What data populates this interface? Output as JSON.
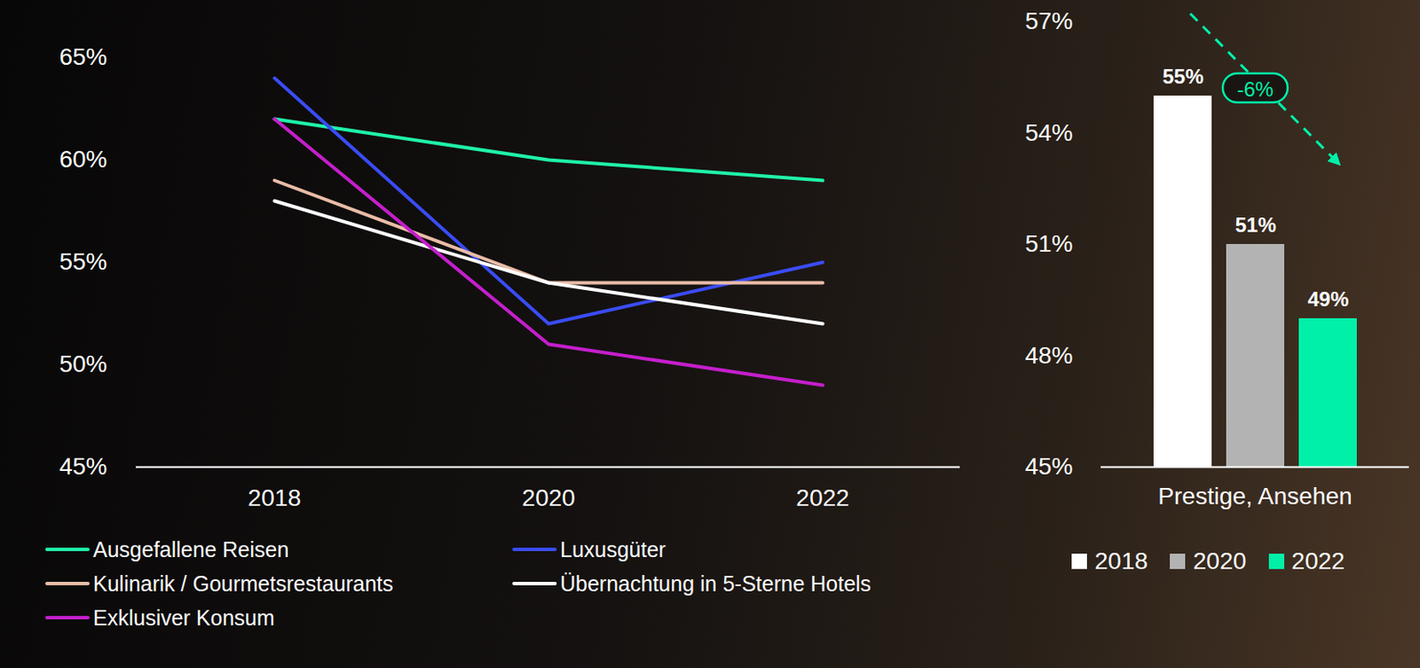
{
  "chart_data": [
    {
      "type": "line",
      "categories": [
        "2018",
        "2020",
        "2022"
      ],
      "series": [
        {
          "name": "Ausgefallene Reisen",
          "color": "#1ff2a9",
          "values": [
            62,
            60,
            59
          ]
        },
        {
          "name": "Luxusgüter",
          "color": "#3a4cf5",
          "values": [
            64,
            52,
            55
          ]
        },
        {
          "name": "Kulinarik / Gourmetsrestaurants",
          "color": "#e9bca7",
          "values": [
            59,
            54,
            54
          ]
        },
        {
          "name": "Übernachtung in 5-Sterne Hotels",
          "color": "#ffffff",
          "values": [
            58,
            54,
            52
          ]
        },
        {
          "name": "Exklusiver Konsum",
          "color": "#c41fcb",
          "values": [
            62,
            51,
            49
          ]
        }
      ],
      "ylim": [
        45,
        65
      ],
      "yticks": [
        {
          "value": 45,
          "label": "45%"
        },
        {
          "value": 50,
          "label": "50%"
        },
        {
          "value": 55,
          "label": "55%"
        },
        {
          "value": 60,
          "label": "60%"
        },
        {
          "value": 65,
          "label": "65%"
        }
      ],
      "grid": false,
      "legend": "bottom"
    },
    {
      "type": "bar",
      "categories": [
        "Prestige, Ansehen"
      ],
      "series": [
        {
          "name": "2018",
          "color": "#ffffff",
          "values": [
            55
          ],
          "value_labels": [
            "55%"
          ]
        },
        {
          "name": "2020",
          "color": "#b3b3b3",
          "values": [
            51
          ],
          "value_labels": [
            "51%"
          ]
        },
        {
          "name": "2022",
          "color": "#00f0a8",
          "values": [
            49
          ],
          "value_labels": [
            "49%"
          ]
        }
      ],
      "ylim": [
        45,
        57
      ],
      "yticks": [
        {
          "value": 45,
          "label": "45%"
        },
        {
          "value": 48,
          "label": "48%"
        },
        {
          "value": 51,
          "label": "51%"
        },
        {
          "value": 54,
          "label": "54%"
        },
        {
          "value": 57,
          "label": "57%"
        }
      ],
      "grid": false,
      "data_labels": true,
      "legend": "bottom",
      "annotations": [
        "-6%"
      ]
    }
  ]
}
